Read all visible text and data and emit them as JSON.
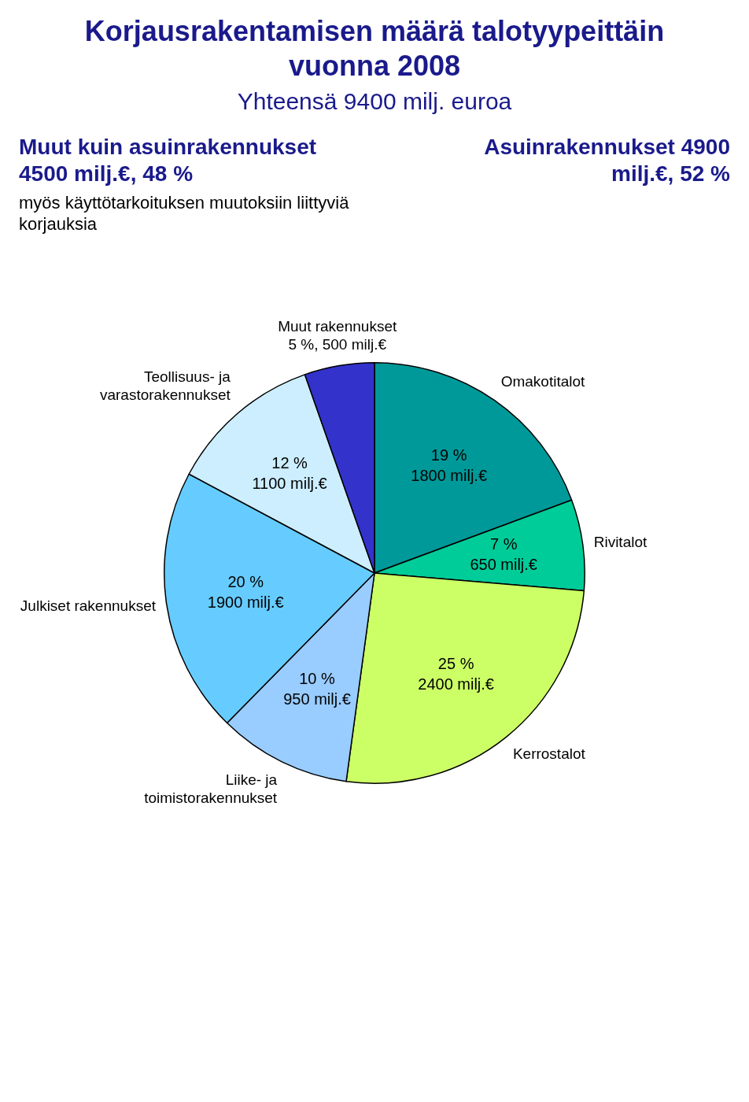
{
  "chart_data": {
    "type": "pie",
    "title": "Korjausrakentamisen määrä talotyypeittäin vuonna 2008",
    "subtitle": "Yhteensä 9400 milj. euroa",
    "categories": [
      "Omakotitalot",
      "Rivitalot",
      "Kerrostalot",
      "Liike- ja toimistorakennukset",
      "Julkiset rakennukset",
      "Teollisuus- ja varastorakennukset",
      "Muut rakennukset"
    ],
    "values": [
      1800,
      650,
      2400,
      950,
      1900,
      1100,
      500
    ],
    "colors": [
      "#009999",
      "#00cc99",
      "#ccff66",
      "#99ccff",
      "#66ccff",
      "#cceeff",
      "#3333cc"
    ],
    "value_labels": [
      "19 %\n1800 milj.€",
      "7 %\n650 milj.€",
      "25 %\n2400 milj.€",
      "10 %\n950 milj.€",
      "20 %\n1900 milj.€",
      "12 %\n1100 milj.€",
      "5 %, 500 milj.€"
    ],
    "annotations": [
      "Muut kuin asuinrakennukset 4500 milj.€, 48 %",
      "myös käyttötarkoituksen muutoksiin liittyviä korjauksia",
      "Asuinrakennukset 4900 milj.€, 52 %"
    ],
    "legend": false
  }
}
